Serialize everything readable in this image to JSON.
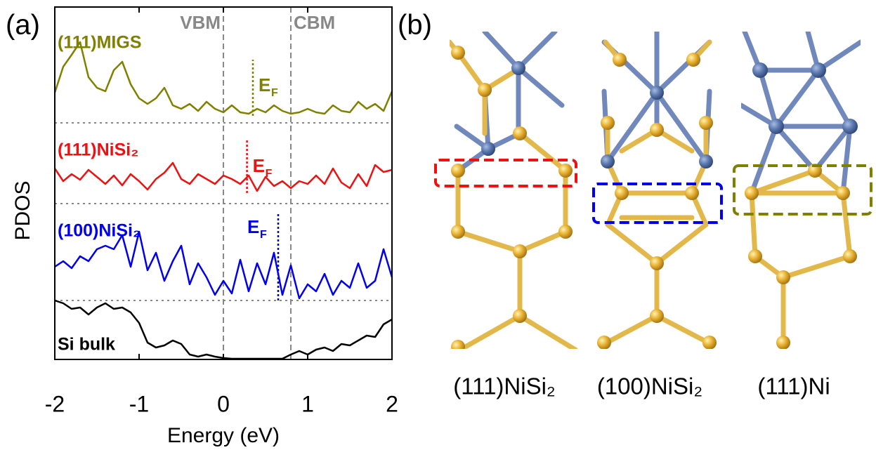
{
  "chart_data": {
    "type": "line",
    "panel_label": "(a)",
    "x_label": "Energy (eV)",
    "y_label": "PDOS",
    "x": [
      -2.0,
      -1.9,
      -1.8,
      -1.7,
      -1.6,
      -1.5,
      -1.4,
      -1.3,
      -1.2,
      -1.1,
      -1.0,
      -0.9,
      -0.8,
      -0.7,
      -0.6,
      -0.5,
      -0.4,
      -0.3,
      -0.2,
      -0.1,
      0.0,
      0.1,
      0.2,
      0.3,
      0.4,
      0.5,
      0.6,
      0.7,
      0.8,
      0.9,
      1.0,
      1.1,
      1.2,
      1.3,
      1.4,
      1.5,
      1.6,
      1.7,
      1.8,
      1.9,
      2.0
    ],
    "xlim": [
      -2,
      2
    ],
    "xticks": [
      -2,
      -1,
      0,
      1,
      2
    ],
    "ylim": [
      0,
      502
    ],
    "series": [
      {
        "name": "(111)MIGS",
        "color": "#808000",
        "values": [
          380,
          417,
          434,
          452,
          402,
          387,
          382,
          412,
          424,
          392,
          372,
          364,
          372,
          387,
          362,
          357,
          364,
          354,
          367,
          357,
          352,
          362,
          352,
          350,
          357,
          352,
          362,
          354,
          350,
          352,
          357,
          352,
          350,
          362,
          354,
          352,
          367,
          357,
          364,
          354,
          382
        ]
      },
      {
        "name": "(111)NiSi₂",
        "color": "#ee1111",
        "values": [
          272,
          254,
          264,
          256,
          270,
          260,
          250,
          262,
          248,
          264,
          254,
          242,
          257,
          266,
          280,
          257,
          250,
          264,
          257,
          250,
          262,
          257,
          250,
          262,
          240,
          260,
          247,
          254,
          244,
          254,
          250,
          262,
          250,
          272,
          252,
          244,
          264,
          247,
          277,
          267,
          270
        ]
      },
      {
        "name": "(100)NiSi₂",
        "color": "#0000ee",
        "values": [
          132,
          140,
          130,
          147,
          140,
          157,
          162,
          157,
          177,
          132,
          182,
          127,
          152,
          112,
          140,
          162,
          107,
          137,
          117,
          92,
          112,
          94,
          142,
          97,
          137,
          107,
          152,
          92,
          134,
          87,
          107,
          97,
          122,
          92,
          112,
          102,
          137,
          102,
          112,
          157,
          117
        ]
      },
      {
        "name": "Si bulk",
        "color": "#000000",
        "values": [
          84,
          80,
          72,
          74,
          64,
          74,
          80,
          72,
          74,
          67,
          52,
          24,
          17,
          20,
          27,
          22,
          7,
          4,
          7,
          4,
          2,
          1,
          1,
          1,
          1,
          1,
          1,
          1,
          7,
          12,
          7,
          14,
          17,
          12,
          22,
          20,
          27,
          34,
          32,
          50,
          57
        ]
      }
    ],
    "reference_lines": [
      {
        "label": "VBM",
        "x": 0
      },
      {
        "label": "CBM",
        "x": 0.8
      }
    ],
    "baselines": [
      337,
      222,
      84
    ],
    "fermi_label": {
      "main": "E",
      "sub": "F"
    },
    "fermi_levels": [
      {
        "x": 0.35,
        "range": [
          347,
          427
        ],
        "color": "#808000"
      },
      {
        "x": 0.28,
        "range": [
          237,
          312
        ],
        "color": "#ee1111"
      },
      {
        "x": 0.65,
        "range": [
          84,
          207
        ],
        "color": "#0000ee"
      }
    ]
  },
  "structures": {
    "panel_label": "(b)",
    "captions": [
      "(111)NiSi₂",
      "(100)NiSi₂",
      "(111)Ni"
    ]
  }
}
